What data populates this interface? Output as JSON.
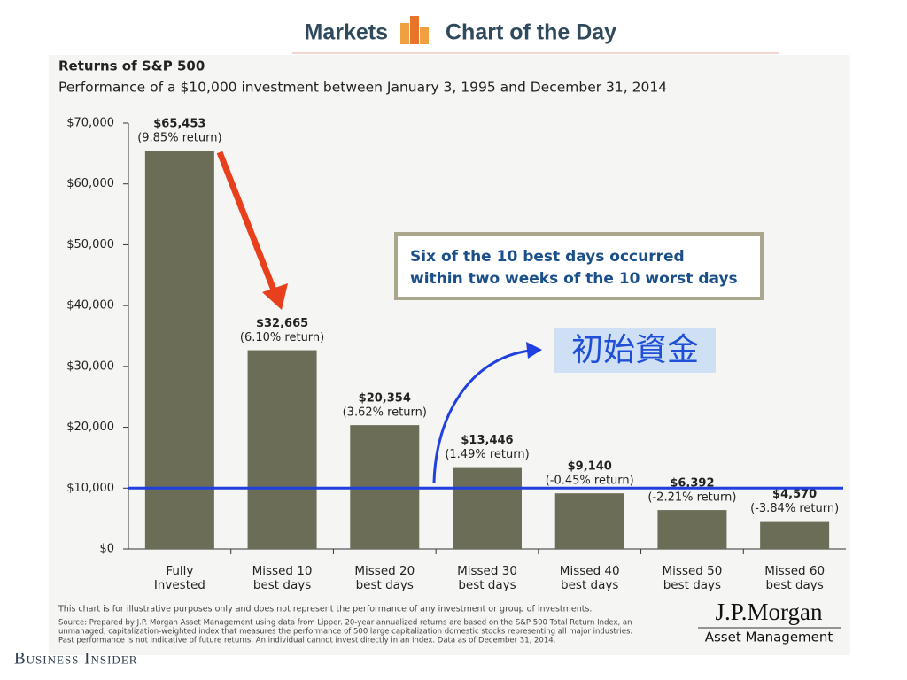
{
  "header": {
    "section": "Markets",
    "feature": "Chart of the Day"
  },
  "chart_data": {
    "type": "bar",
    "title": "Returns of S&P 500",
    "subtitle": "Performance of a $10,000 investment between January 3, 1995 and December 31, 2014",
    "categories": [
      [
        "Fully",
        "Invested"
      ],
      [
        "Missed 10",
        "best days"
      ],
      [
        "Missed 20",
        "best days"
      ],
      [
        "Missed 30",
        "best days"
      ],
      [
        "Missed 40",
        "best days"
      ],
      [
        "Missed 50",
        "best days"
      ],
      [
        "Missed 60",
        "best days"
      ]
    ],
    "values": [
      65453,
      32665,
      20354,
      13446,
      9140,
      6392,
      4570
    ],
    "value_labels": [
      "$65,453",
      "$32,665",
      "$20,354",
      "$13,446",
      "$9,140",
      "$6,392",
      "$4,570"
    ],
    "return_labels": [
      "(9.85% return)",
      "(6.10% return)",
      "(3.62% return)",
      "(1.49% return)",
      "(-0.45% return)",
      "(-2.21% return)",
      "(-3.84% return)"
    ],
    "color": "#6b6d56",
    "ylim": [
      0,
      70000
    ],
    "yticks": [
      {
        "value": 0,
        "label": "$0"
      },
      {
        "value": 10000,
        "label": "$10,000"
      },
      {
        "value": 20000,
        "label": "$20,000"
      },
      {
        "value": 30000,
        "label": "$30,000"
      },
      {
        "value": 40000,
        "label": "$40,000"
      },
      {
        "value": 50000,
        "label": "$50,000"
      },
      {
        "value": 60000,
        "label": "$60,000"
      },
      {
        "value": 70000,
        "label": "$70,000"
      }
    ],
    "annotation": [
      "Six of the 10 best days occurred",
      "within two weeks of the 10 worst days"
    ],
    "reference_line": {
      "value": 10000,
      "label": "初始資金",
      "color": "#1f3fe0"
    },
    "footnotes": [
      "This chart is for illustrative purposes only and does not represent the performance of any investment or group of investments.",
      "Source: Prepared by J.P. Morgan Asset Management using data from Lipper. 20-year annualized returns are based on the S&P 500 Total Return Index, an",
      "unmanaged, capitalization-weighted index that measures the performance of 500 large capitalization domestic stocks representing all major industries.",
      "Past performance is not indicative of future returns. An individual cannot invest directly in an index. Data as of December 31, 2014."
    ]
  },
  "logo": {
    "name": "J.P.Morgan",
    "division": "Asset Management"
  },
  "publisher": "Business Insider"
}
